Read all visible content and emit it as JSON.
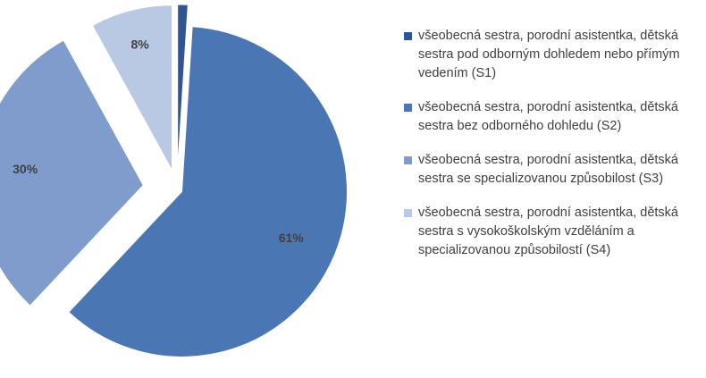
{
  "chart_data": {
    "type": "pie",
    "categories": [
      "všeobecná sestra, porodní asistentka, dětská sestra pod odborným dohledem nebo přímým vedením (S1)",
      "všeobecná sestra, porodní asistentka, dětská sestra bez odborného dohledu (S2)",
      "všeobecná sestra, porodní asistentka, dětská sestra se specializovanou způsobilost (S3)",
      "všeobecná sestra, porodní asistentka, dětská sestra s vysokoškolským vzděláním a specializovanou způsobilostí (S4)"
    ],
    "values": [
      1,
      61,
      30,
      8
    ],
    "value_labels": [
      "1%",
      "61%",
      "30%",
      "8%"
    ],
    "colors": [
      "#2f5597",
      "#4a76b3",
      "#7f9ccc",
      "#b9c8e3"
    ]
  }
}
